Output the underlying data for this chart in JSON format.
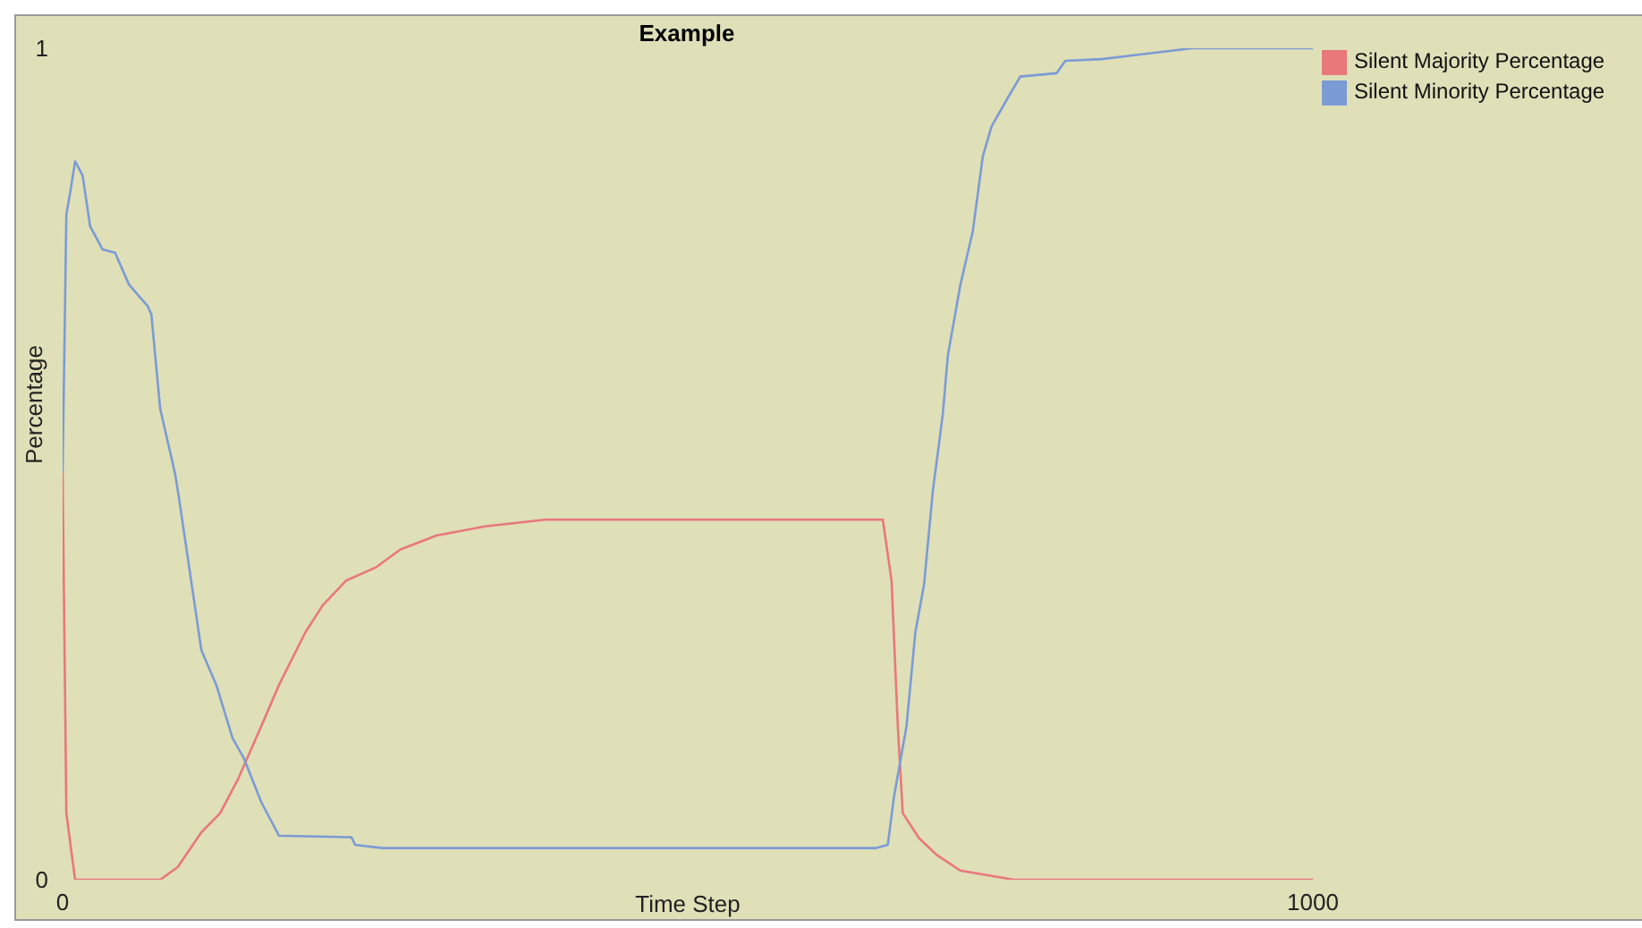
{
  "chart_data": {
    "type": "line",
    "title": "Example",
    "xlabel": "Time Step",
    "ylabel": "Percentage",
    "xlim": [
      0,
      1000
    ],
    "ylim": [
      0,
      1
    ],
    "xticks": [
      0,
      1000
    ],
    "yticks": [
      0,
      1
    ],
    "grid": false,
    "legend": "top right",
    "marker": "none",
    "line_style": "solid",
    "series": [
      {
        "name": "Silent Majority Percentage",
        "color": "#e8787a",
        "x": [
          0,
          3,
          10,
          30,
          78,
          92,
          111,
          126,
          140,
          159,
          173,
          194,
          208,
          227,
          251,
          270,
          299,
          338,
          386,
          656,
          663,
          668,
          672,
          685,
          699,
          718,
          761,
          1000
        ],
        "values": [
          0.49,
          0.08,
          0,
          0,
          0,
          0.015,
          0.057,
          0.08,
          0.12,
          0.185,
          0.234,
          0.297,
          0.33,
          0.36,
          0.376,
          0.397,
          0.414,
          0.425,
          0.433,
          0.433,
          0.36,
          0.185,
          0.08,
          0.05,
          0.03,
          0.011,
          0,
          0
        ]
      },
      {
        "name": "Silent Minority Percentage",
        "color": "#7b9bd4",
        "x": [
          0,
          3,
          6,
          10,
          16,
          22,
          32,
          42,
          53,
          68,
          71,
          78,
          90,
          93,
          111,
          123,
          136,
          145,
          159,
          173,
          231,
          234,
          256,
          650,
          660,
          665,
          675,
          682,
          689,
          696,
          704,
          708,
          718,
          728,
          736,
          743,
          757,
          766,
          795,
          802,
          831,
          881,
          903,
          1000
        ],
        "values": [
          0.49,
          0.8,
          0.826,
          0.864,
          0.847,
          0.786,
          0.758,
          0.754,
          0.716,
          0.69,
          0.68,
          0.567,
          0.488,
          0.46,
          0.276,
          0.234,
          0.17,
          0.146,
          0.093,
          0.053,
          0.051,
          0.042,
          0.038,
          0.038,
          0.042,
          0.1,
          0.185,
          0.297,
          0.355,
          0.467,
          0.56,
          0.63,
          0.715,
          0.78,
          0.87,
          0.906,
          0.943,
          0.966,
          0.97,
          0.985,
          0.987,
          0.996,
          1,
          1
        ]
      }
    ]
  }
}
